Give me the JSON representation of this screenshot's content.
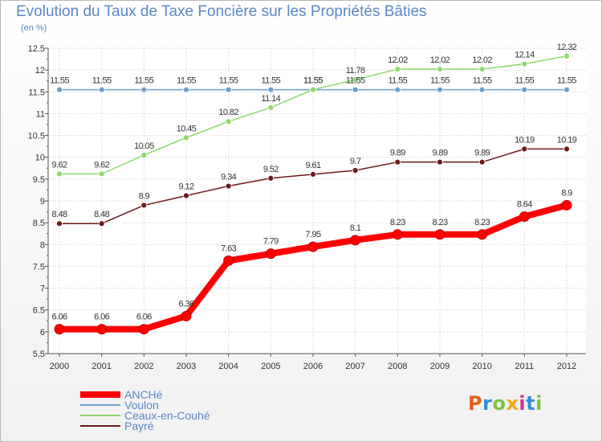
{
  "title": "Evolution du Taux de Taxe Foncière sur les Propriétés Bâties",
  "subtitle": "(en %)",
  "logo": {
    "text": "Proxiti",
    "colors": [
      "#e85c1a",
      "#2f8fd8",
      "#7cc241",
      "#f0a81a",
      "#d6308a",
      "#2f8fd8",
      "#7cc241"
    ]
  },
  "chart_data": {
    "type": "line",
    "title": "Evolution du Taux de Taxe Foncière sur les Propriétés Bâties",
    "ylabel": "(en %)",
    "xlabel": "",
    "ylim": [
      5.5,
      12.5
    ],
    "yticks": [
      "5.5",
      "6",
      "6.5",
      "7",
      "7.5",
      "8",
      "8.5",
      "9",
      "9.5",
      "10",
      "10.5",
      "11",
      "11.5",
      "12",
      "12.5"
    ],
    "x": [
      "2000",
      "2001",
      "2002",
      "2003",
      "2004",
      "2005",
      "2006",
      "2007",
      "2008",
      "2009",
      "2010",
      "2011",
      "2012"
    ],
    "grid": true,
    "legend_position": "bottom-left",
    "series": [
      {
        "name": "ANCHé",
        "color": "#ff0000",
        "values": [
          6.06,
          6.06,
          6.06,
          6.36,
          7.63,
          7.79,
          7.95,
          8.1,
          8.23,
          8.23,
          8.23,
          8.64,
          8.9
        ],
        "labels": [
          "6.06",
          "6.06",
          "6.06",
          "6.36",
          "7.63",
          "7.79",
          "7.95",
          "8.1",
          "8.23",
          "8.23",
          "8.23",
          "8.64",
          "8.9"
        ]
      },
      {
        "name": "Voulon",
        "color": "#6a9fd0",
        "values": [
          11.55,
          11.55,
          11.55,
          11.55,
          11.55,
          11.55,
          11.55,
          11.55,
          11.55,
          11.55,
          11.55,
          11.55,
          11.55
        ],
        "labels": [
          "11.55",
          "11.55",
          "11.55",
          "11.55",
          "11.55",
          "11.55",
          "11.55",
          "11.55",
          "11.55",
          "11.55",
          "11.55",
          "11.55",
          "11.55"
        ]
      },
      {
        "name": "Ceaux-en-Couhé",
        "color": "#8fd86a",
        "values": [
          9.62,
          9.62,
          10.05,
          10.45,
          10.82,
          11.14,
          11.55,
          11.78,
          12.02,
          12.02,
          12.02,
          12.14,
          12.32
        ],
        "labels": [
          "9.62",
          "9.62",
          "10.05",
          "10.45",
          "10.82",
          "11.14",
          "11.55",
          "11.78",
          "12.02",
          "12.02",
          "12.02",
          "12.14",
          "12.32"
        ]
      },
      {
        "name": "Payré",
        "color": "#6e1a1a",
        "values": [
          8.48,
          8.48,
          8.9,
          9.12,
          9.34,
          9.52,
          9.61,
          9.7,
          9.89,
          9.89,
          9.89,
          10.19,
          10.19
        ],
        "labels": [
          "8.48",
          "8.48",
          "8.9",
          "9.12",
          "9.34",
          "9.52",
          "9.61",
          "9.7",
          "9.89",
          "9.89",
          "9.89",
          "10.19",
          "10.19"
        ]
      }
    ]
  }
}
